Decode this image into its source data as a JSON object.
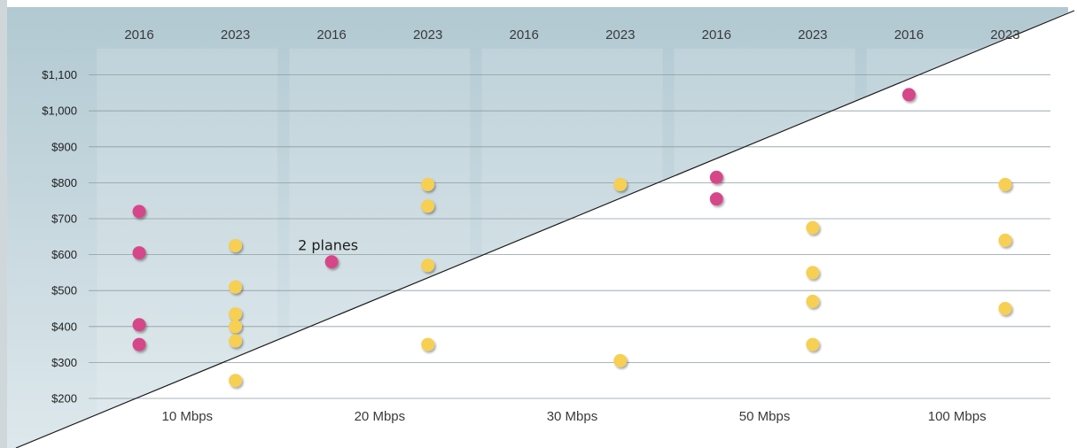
{
  "chart_data": {
    "type": "scatter",
    "title": "",
    "xlabel": "",
    "ylabel": "",
    "categories": [
      "10 Mbps",
      "20 Mbps",
      "30 Mbps",
      "50 Mbps",
      "100 Mbps"
    ],
    "years": [
      "2016",
      "2023"
    ],
    "y_ticks": [
      "$200",
      "$300",
      "$400",
      "$500",
      "$600",
      "$700",
      "$800",
      "$900",
      "$1,000",
      "$1,100"
    ],
    "ylim": [
      200,
      1100
    ],
    "grid": true,
    "colors": {
      "2016": "#d6478a",
      "2023": "#f6cf52",
      "background_band": "#b8cdd6"
    },
    "series": [
      {
        "year": "2016",
        "points": [
          {
            "category": "10 Mbps",
            "value": 720
          },
          {
            "category": "10 Mbps",
            "value": 605
          },
          {
            "category": "10 Mbps",
            "value": 405
          },
          {
            "category": "10 Mbps",
            "value": 350
          },
          {
            "category": "20 Mbps",
            "value": 580
          },
          {
            "category": "50 Mbps",
            "value": 815
          },
          {
            "category": "50 Mbps",
            "value": 755
          },
          {
            "category": "100 Mbps",
            "value": 1045
          }
        ]
      },
      {
        "year": "2023",
        "points": [
          {
            "category": "10 Mbps",
            "value": 625
          },
          {
            "category": "10 Mbps",
            "value": 510
          },
          {
            "category": "10 Mbps",
            "value": 435
          },
          {
            "category": "10 Mbps",
            "value": 400
          },
          {
            "category": "10 Mbps",
            "value": 360
          },
          {
            "category": "10 Mbps",
            "value": 250
          },
          {
            "category": "20 Mbps",
            "value": 795
          },
          {
            "category": "20 Mbps",
            "value": 735
          },
          {
            "category": "20 Mbps",
            "value": 570
          },
          {
            "category": "20 Mbps",
            "value": 350
          },
          {
            "category": "30 Mbps",
            "value": 795
          },
          {
            "category": "30 Mbps",
            "value": 305
          },
          {
            "category": "50 Mbps",
            "value": 675
          },
          {
            "category": "50 Mbps",
            "value": 550
          },
          {
            "category": "50 Mbps",
            "value": 470
          },
          {
            "category": "50 Mbps",
            "value": 350
          },
          {
            "category": "100 Mbps",
            "value": 795
          },
          {
            "category": "100 Mbps",
            "value": 640
          },
          {
            "category": "100 Mbps",
            "value": 450
          }
        ]
      }
    ],
    "annotations": [
      {
        "text": "2 planes",
        "category": "20 Mbps",
        "year": "2016",
        "value": 580
      }
    ]
  }
}
